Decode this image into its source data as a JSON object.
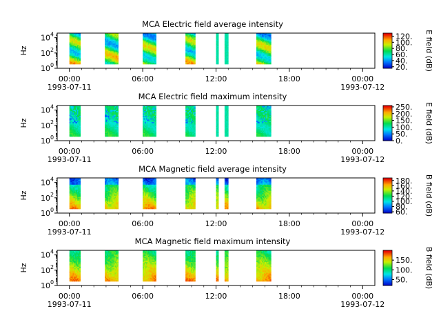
{
  "chart_data": [
    {
      "type": "heatmap",
      "title": "MCA  Electric field average intensity",
      "ylabel": "Hz",
      "colorbar_label": "E field (dB)",
      "colorbar_ticks": [
        "20.",
        "40.",
        "60.",
        "80.",
        "100.",
        "120."
      ],
      "colorbar_range": [
        15,
        130
      ],
      "y_tick_labels": [
        "10",
        "10",
        "10"
      ],
      "y_tick_exponents": [
        "0",
        "2",
        "4"
      ],
      "x_tick_labels": [
        "00:00",
        "06:00",
        "12:00",
        "18:00",
        "00:00"
      ],
      "x_date_labels": [
        "1993-07-11",
        "1993-07-12"
      ],
      "style": "avg-e"
    },
    {
      "type": "heatmap",
      "title": "MCA  Electric field maximum intensity",
      "ylabel": "Hz",
      "colorbar_label": "E field (dB)",
      "colorbar_ticks": [
        "0.",
        "50.",
        "100.",
        "150.",
        "200.",
        "250."
      ],
      "colorbar_range": [
        0,
        260
      ],
      "y_tick_labels": [
        "10",
        "10",
        "10"
      ],
      "y_tick_exponents": [
        "0",
        "2",
        "4"
      ],
      "x_tick_labels": [
        "00:00",
        "06:00",
        "12:00",
        "18:00",
        "00:00"
      ],
      "x_date_labels": [
        "1993-07-11",
        "1993-07-12"
      ],
      "style": "max-e"
    },
    {
      "type": "heatmap",
      "title": "MCA  Magnetic field average intensity",
      "ylabel": "Hz",
      "colorbar_label": "B field (dB)",
      "colorbar_ticks": [
        "60.",
        "80.",
        "100.",
        "120.",
        "140.",
        "160.",
        "180."
      ],
      "colorbar_range": [
        55,
        190
      ],
      "y_tick_labels": [
        "10",
        "10",
        "10"
      ],
      "y_tick_exponents": [
        "0",
        "2",
        "4"
      ],
      "x_tick_labels": [
        "00:00",
        "06:00",
        "12:00",
        "18:00",
        "00:00"
      ],
      "x_date_labels": [
        "1993-07-11",
        "1993-07-12"
      ],
      "style": "avg-b"
    },
    {
      "type": "heatmap",
      "title": "MCA  Magnetic field maximum intensity",
      "ylabel": "Hz",
      "colorbar_label": "B field (dB)",
      "colorbar_ticks": [
        "50.",
        "100.",
        "150."
      ],
      "colorbar_range": [
        20,
        200
      ],
      "y_tick_labels": [
        "10",
        "10",
        "10"
      ],
      "y_tick_exponents": [
        "0",
        "2",
        "4"
      ],
      "x_tick_labels": [
        "00:00",
        "06:00",
        "12:00",
        "18:00",
        "00:00"
      ],
      "x_date_labels": [
        "1993-07-11",
        "1993-07-12"
      ],
      "style": "max-b"
    }
  ],
  "data_segments_hours": [
    [
      0.0,
      0.9
    ],
    [
      2.9,
      4.0
    ],
    [
      6.0,
      7.1
    ],
    [
      9.5,
      10.3
    ],
    [
      12.0,
      12.2
    ],
    [
      12.7,
      13.0
    ],
    [
      15.3,
      16.5
    ]
  ],
  "x_range_hours": [
    -1,
    25
  ],
  "y_range_log10": [
    0,
    4.6
  ]
}
